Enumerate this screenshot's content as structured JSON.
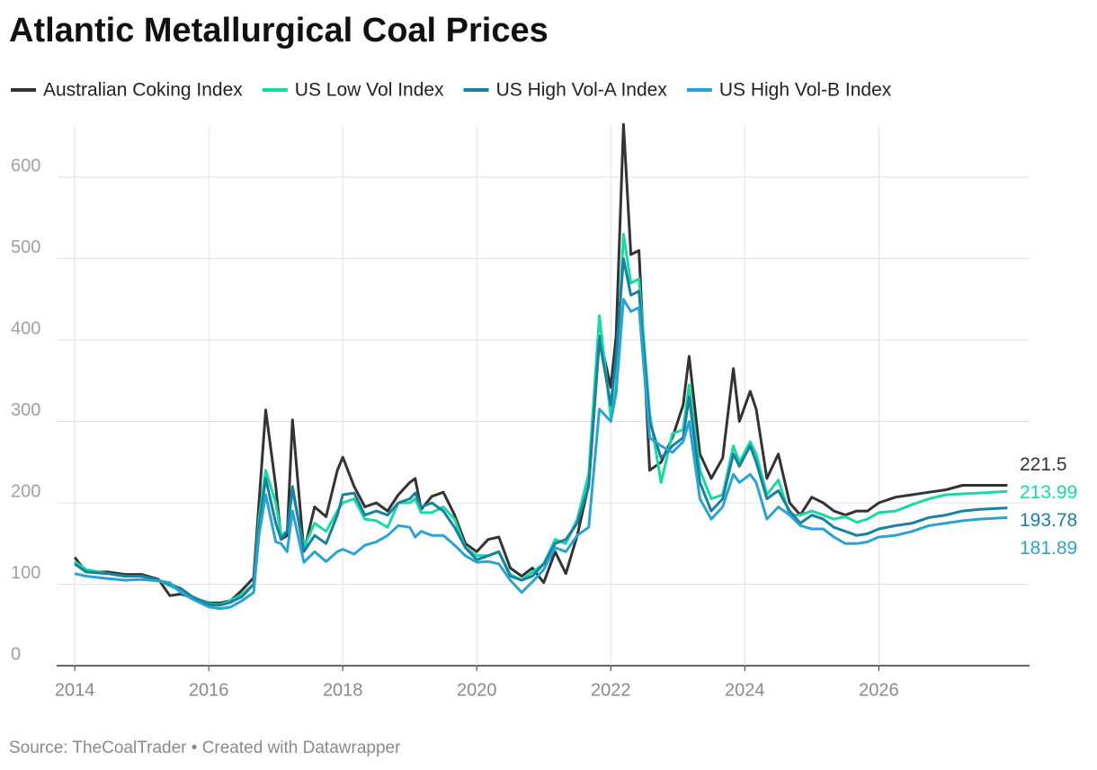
{
  "chart_data": {
    "type": "line",
    "title": "Atlantic Metallurgical Coal Prices",
    "source": "Source: TheCoalTrader • Created with Datawrapper",
    "x": [
      2014.0,
      2014.17,
      2014.5,
      2014.75,
      2015.0,
      2015.25,
      2015.42,
      2015.58,
      2015.75,
      2016.0,
      2016.17,
      2016.33,
      2016.5,
      2016.67,
      2016.75,
      2016.85,
      2017.0,
      2017.08,
      2017.17,
      2017.25,
      2017.42,
      2017.58,
      2017.75,
      2017.92,
      2018.0,
      2018.17,
      2018.33,
      2018.5,
      2018.67,
      2018.83,
      2019.0,
      2019.08,
      2019.17,
      2019.33,
      2019.5,
      2019.67,
      2019.83,
      2020.0,
      2020.17,
      2020.33,
      2020.5,
      2020.67,
      2020.83,
      2021.0,
      2021.17,
      2021.33,
      2021.5,
      2021.67,
      2021.83,
      2022.0,
      2022.08,
      2022.19,
      2022.3,
      2022.42,
      2022.58,
      2022.75,
      2022.92,
      2023.08,
      2023.17,
      2023.33,
      2023.5,
      2023.67,
      2023.83,
      2023.92,
      2024.08,
      2024.17,
      2024.33,
      2024.5,
      2024.67,
      2024.83,
      2025.0,
      2025.17,
      2025.33,
      2025.5,
      2025.67,
      2025.83,
      2026.0,
      2026.25,
      2026.5,
      2026.75,
      2027.0,
      2027.25,
      2027.5,
      2027.92
    ],
    "series": [
      {
        "name": "Australian Coking Index",
        "color": "#333333",
        "values": [
          133,
          115,
          115,
          112,
          112,
          106,
          86,
          88,
          84,
          77,
          77,
          80,
          93,
          108,
          200,
          314,
          220,
          155,
          160,
          302,
          140,
          195,
          183,
          240,
          256,
          220,
          195,
          200,
          190,
          210,
          225,
          230,
          192,
          208,
          213,
          185,
          150,
          140,
          155,
          158,
          120,
          110,
          120,
          102,
          140,
          113,
          160,
          222,
          405,
          342,
          405,
          665,
          505,
          510,
          240,
          250,
          280,
          320,
          380,
          260,
          230,
          255,
          365,
          300,
          337,
          315,
          230,
          260,
          200,
          185,
          207,
          200,
          190,
          185,
          190,
          190,
          200,
          207,
          210,
          213,
          216,
          221.5,
          221.5,
          221.5
        ]
      },
      {
        "name": "US Low Vol Index",
        "color": "#17d9a3",
        "values": [
          128,
          118,
          113,
          110,
          110,
          105,
          98,
          92,
          85,
          76,
          75,
          80,
          88,
          100,
          180,
          240,
          200,
          160,
          165,
          215,
          145,
          175,
          165,
          190,
          200,
          205,
          180,
          178,
          170,
          200,
          200,
          205,
          188,
          188,
          195,
          180,
          145,
          135,
          135,
          140,
          112,
          105,
          115,
          125,
          155,
          150,
          180,
          235,
          430,
          305,
          345,
          530,
          470,
          475,
          310,
          225,
          285,
          290,
          345,
          240,
          205,
          210,
          270,
          250,
          275,
          260,
          210,
          228,
          185,
          185,
          190,
          185,
          180,
          183,
          176,
          180,
          188,
          190,
          198,
          205,
          210,
          211,
          212,
          213.99
        ]
      },
      {
        "name": "US High Vol-A Index",
        "color": "#1a7fa0",
        "values": [
          125,
          115,
          113,
          110,
          110,
          105,
          100,
          95,
          85,
          75,
          74,
          78,
          85,
          100,
          170,
          230,
          175,
          155,
          165,
          220,
          140,
          160,
          150,
          185,
          210,
          212,
          185,
          190,
          185,
          200,
          205,
          212,
          195,
          200,
          190,
          170,
          145,
          130,
          135,
          140,
          110,
          105,
          110,
          125,
          150,
          155,
          175,
          220,
          400,
          320,
          380,
          500,
          455,
          460,
          300,
          255,
          270,
          280,
          330,
          225,
          190,
          205,
          260,
          245,
          270,
          250,
          205,
          215,
          190,
          175,
          185,
          180,
          170,
          165,
          160,
          162,
          168,
          172,
          175,
          182,
          185,
          190,
          192,
          193.78
        ]
      },
      {
        "name": "US High Vol-B Index",
        "color": "#2aa3d4",
        "values": [
          113,
          110,
          107,
          105,
          106,
          104,
          102,
          90,
          82,
          72,
          70,
          72,
          80,
          90,
          160,
          210,
          152,
          150,
          140,
          190,
          127,
          140,
          128,
          140,
          143,
          137,
          148,
          152,
          160,
          172,
          170,
          158,
          165,
          160,
          160,
          148,
          135,
          127,
          128,
          125,
          105,
          90,
          103,
          118,
          145,
          140,
          160,
          170,
          315,
          300,
          335,
          450,
          435,
          440,
          280,
          270,
          262,
          275,
          300,
          205,
          180,
          195,
          235,
          225,
          235,
          225,
          180,
          195,
          185,
          172,
          168,
          168,
          158,
          150,
          150,
          152,
          158,
          160,
          165,
          172,
          175,
          178,
          180,
          181.89
        ]
      }
    ],
    "xlim": [
      2013.73,
      2028.25
    ],
    "xticks": [
      2014,
      2016,
      2018,
      2020,
      2022,
      2024,
      2026
    ],
    "ylim": [
      0,
      663
    ],
    "yticks": [
      0,
      100,
      200,
      300,
      400,
      500,
      600
    ],
    "grid": true
  }
}
